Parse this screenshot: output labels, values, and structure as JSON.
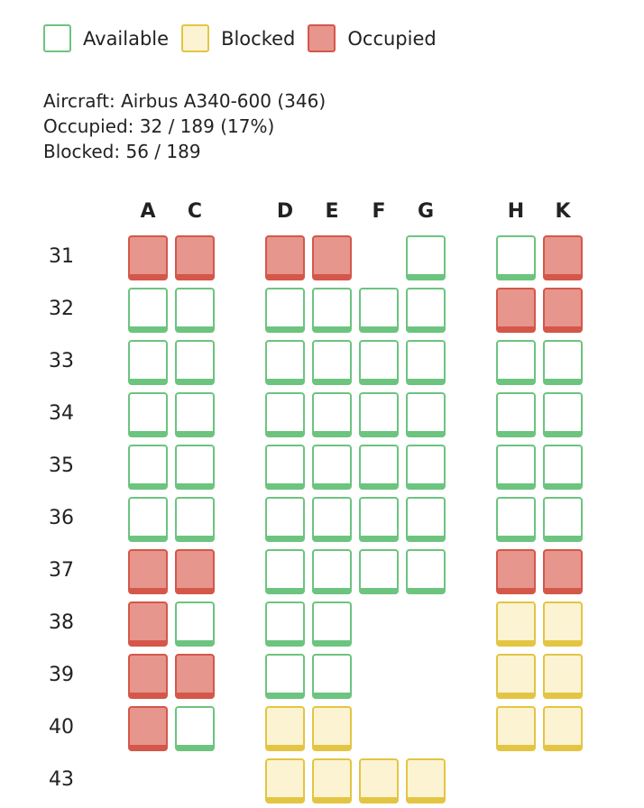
{
  "legend": [
    {
      "status": "available",
      "label": "Available"
    },
    {
      "status": "blocked",
      "label": "Blocked"
    },
    {
      "status": "occupied",
      "label": "Occupied"
    }
  ],
  "info": {
    "aircraft": "Aircraft: Airbus A340-600 (346)",
    "occupied": "Occupied: 32 / 189 (17%)",
    "blocked": "Blocked: 56 / 189"
  },
  "colors": {
    "available_border": "#6cc47f",
    "blocked_border": "#e3c543",
    "blocked_fill": "#fbf3d2",
    "occupied_border": "#d4574a",
    "occupied_fill": "#e6968c"
  },
  "columns": [
    "A",
    "C",
    "D",
    "E",
    "F",
    "G",
    "H",
    "K"
  ],
  "rows": [
    {
      "label": "31",
      "seats": {
        "A": "occupied",
        "C": "occupied",
        "D": "occupied",
        "E": "occupied",
        "G": "available",
        "H": "available",
        "K": "occupied"
      }
    },
    {
      "label": "32",
      "seats": {
        "A": "available",
        "C": "available",
        "D": "available",
        "E": "available",
        "F": "available",
        "G": "available",
        "H": "occupied",
        "K": "occupied"
      }
    },
    {
      "label": "33",
      "seats": {
        "A": "available",
        "C": "available",
        "D": "available",
        "E": "available",
        "F": "available",
        "G": "available",
        "H": "available",
        "K": "available"
      }
    },
    {
      "label": "34",
      "seats": {
        "A": "available",
        "C": "available",
        "D": "available",
        "E": "available",
        "F": "available",
        "G": "available",
        "H": "available",
        "K": "available"
      }
    },
    {
      "label": "35",
      "seats": {
        "A": "available",
        "C": "available",
        "D": "available",
        "E": "available",
        "F": "available",
        "G": "available",
        "H": "available",
        "K": "available"
      }
    },
    {
      "label": "36",
      "seats": {
        "A": "available",
        "C": "available",
        "D": "available",
        "E": "available",
        "F": "available",
        "G": "available",
        "H": "available",
        "K": "available"
      }
    },
    {
      "label": "37",
      "seats": {
        "A": "occupied",
        "C": "occupied",
        "D": "available",
        "E": "available",
        "F": "available",
        "G": "available",
        "H": "occupied",
        "K": "occupied"
      }
    },
    {
      "label": "38",
      "seats": {
        "A": "occupied",
        "C": "available",
        "D": "available",
        "E": "available",
        "H": "blocked",
        "K": "blocked"
      }
    },
    {
      "label": "39",
      "seats": {
        "A": "occupied",
        "C": "occupied",
        "D": "available",
        "E": "available",
        "H": "blocked",
        "K": "blocked"
      }
    },
    {
      "label": "40",
      "seats": {
        "A": "occupied",
        "C": "available",
        "D": "blocked",
        "E": "blocked",
        "H": "blocked",
        "K": "blocked"
      }
    },
    {
      "label": "43",
      "seats": {
        "D": "blocked",
        "E": "blocked",
        "F": "blocked",
        "G": "blocked"
      }
    }
  ]
}
